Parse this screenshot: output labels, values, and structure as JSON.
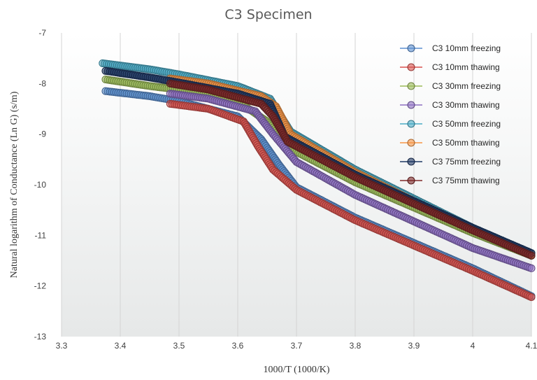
{
  "chart_data": {
    "type": "scatter",
    "title": "C3 Specimen",
    "xlabel": "1000/T  (1000/K)",
    "ylabel": "Natural logarithm of Conductance (Ln G)  (s/m)",
    "xlim": [
      3.3,
      4.1
    ],
    "ylim": [
      -13,
      -7
    ],
    "xticks": [
      "3.3",
      "3.4",
      "3.5",
      "3.6",
      "3.7",
      "3.8",
      "3.9",
      "4",
      "4.1"
    ],
    "yticks": [
      "-7",
      "-8",
      "-9",
      "-10",
      "-11",
      "-12",
      "-13"
    ],
    "grid": "vertical",
    "legend": "top-right",
    "series": [
      {
        "name": "C3 10mm freezing",
        "color": "#5b8fd0",
        "points": [
          [
            3.375,
            -8.15
          ],
          [
            3.45,
            -8.25
          ],
          [
            3.5,
            -8.35
          ],
          [
            3.6,
            -8.65
          ],
          [
            3.64,
            -9.1
          ],
          [
            3.67,
            -9.6
          ],
          [
            3.7,
            -10.05
          ],
          [
            3.8,
            -10.65
          ],
          [
            4.0,
            -11.65
          ],
          [
            4.1,
            -12.2
          ]
        ]
      },
      {
        "name": "C3 10mm thawing",
        "color": "#d9534f",
        "points": [
          [
            3.485,
            -8.4
          ],
          [
            3.55,
            -8.5
          ],
          [
            3.61,
            -8.75
          ],
          [
            3.635,
            -9.25
          ],
          [
            3.66,
            -9.7
          ],
          [
            3.7,
            -10.1
          ],
          [
            3.8,
            -10.7
          ],
          [
            4.0,
            -11.7
          ],
          [
            4.1,
            -12.22
          ]
        ]
      },
      {
        "name": "C3 30mm freezing",
        "color": "#9bbb59",
        "points": [
          [
            3.375,
            -7.92
          ],
          [
            3.45,
            -8.05
          ],
          [
            3.5,
            -8.12
          ],
          [
            3.6,
            -8.35
          ],
          [
            3.65,
            -8.75
          ],
          [
            3.7,
            -9.35
          ],
          [
            3.8,
            -9.95
          ],
          [
            4.0,
            -10.95
          ],
          [
            4.1,
            -11.4
          ]
        ]
      },
      {
        "name": "C3 30mm thawing",
        "color": "#8e6fc2",
        "points": [
          [
            3.485,
            -8.2
          ],
          [
            3.55,
            -8.3
          ],
          [
            3.63,
            -8.55
          ],
          [
            3.66,
            -9.0
          ],
          [
            3.7,
            -9.55
          ],
          [
            3.8,
            -10.2
          ],
          [
            4.0,
            -11.25
          ],
          [
            4.1,
            -11.65
          ]
        ]
      },
      {
        "name": "C3 50mm freezing",
        "color": "#4bacc6",
        "points": [
          [
            3.37,
            -7.6
          ],
          [
            3.45,
            -7.72
          ],
          [
            3.5,
            -7.82
          ],
          [
            3.6,
            -8.05
          ],
          [
            3.655,
            -8.3
          ],
          [
            3.69,
            -8.95
          ],
          [
            3.8,
            -9.7
          ],
          [
            4.0,
            -10.85
          ],
          [
            4.1,
            -11.35
          ]
        ]
      },
      {
        "name": "C3 50mm thawing",
        "color": "#f79646",
        "points": [
          [
            3.485,
            -7.9
          ],
          [
            3.55,
            -8.0
          ],
          [
            3.64,
            -8.25
          ],
          [
            3.665,
            -8.45
          ],
          [
            3.69,
            -9.0
          ],
          [
            3.8,
            -9.75
          ],
          [
            4.0,
            -10.9
          ],
          [
            4.1,
            -11.38
          ]
        ]
      },
      {
        "name": "C3 75mm freezing",
        "color": "#1f3864",
        "points": [
          [
            3.375,
            -7.75
          ],
          [
            3.45,
            -7.88
          ],
          [
            3.5,
            -7.98
          ],
          [
            3.6,
            -8.2
          ],
          [
            3.655,
            -8.4
          ],
          [
            3.68,
            -9.05
          ],
          [
            3.8,
            -9.8
          ],
          [
            4.0,
            -10.85
          ],
          [
            4.1,
            -11.35
          ]
        ]
      },
      {
        "name": "C3 75mm thawing",
        "color": "#7f2a2a",
        "points": [
          [
            3.485,
            -8.0
          ],
          [
            3.55,
            -8.12
          ],
          [
            3.64,
            -8.4
          ],
          [
            3.66,
            -8.65
          ],
          [
            3.685,
            -9.15
          ],
          [
            3.8,
            -9.85
          ],
          [
            4.0,
            -10.9
          ],
          [
            4.1,
            -11.4
          ]
        ]
      }
    ]
  }
}
